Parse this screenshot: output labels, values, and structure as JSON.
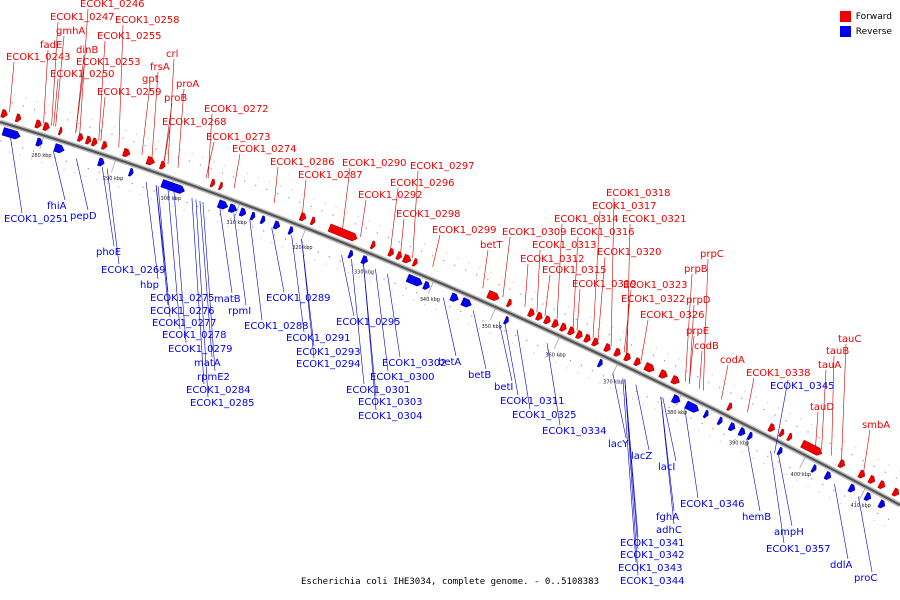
{
  "caption": "Escherichia coli IHE3034, complete genome. - 0..5108383",
  "legend": [
    {
      "label": "Forward",
      "color": "#ee0000"
    },
    {
      "label": "Reverse",
      "color": "#0000ee"
    }
  ],
  "colors": {
    "forward": "#ee0000",
    "reverse": "#0000ee",
    "backbone": "#777777"
  },
  "ticks": [
    "280 kbp",
    "290 kbp",
    "300 kbp",
    "310 kbp",
    "320 kbp",
    "330 kbp",
    "340 kbp",
    "350 kbp",
    "360 kbp",
    "370 kbp",
    "380 kbp",
    "390 kbp",
    "400 kbp",
    "410 kbp"
  ],
  "forward_labels": [
    "ECOK1_0246",
    "ECOK1_0247",
    "ECOK1_0258",
    "gmhA",
    "ECOK1_0255",
    "fadE",
    "dinB",
    "crl",
    "ECOK1_0243",
    "ECOK1_0253",
    "frsA",
    "ECOK1_0250",
    "gpt",
    "proA",
    "ECOK1_0259",
    "proB",
    "ECOK1_0268",
    "ECOK1_0272",
    "ECOK1_0273",
    "ECOK1_0274",
    "ECOK1_0286",
    "ECOK1_0290",
    "ECOK1_0297",
    "ECOK1_0287",
    "ECOK1_0296",
    "ECOK1_0292",
    "ECOK1_0298",
    "ECOK1_0299",
    "betT",
    "ECOK1_0318",
    "ECOK1_0317",
    "ECOK1_0314",
    "ECOK1_0321",
    "ECOK1_0309",
    "ECOK1_0316",
    "ECOK1_0313",
    "ECOK1_0320",
    "prpC",
    "ECOK1_0312",
    "prpB",
    "ECOK1_0315",
    "ECOK1_0319",
    "ECOK1_0323",
    "prpD",
    "ECOK1_0322",
    "ECOK1_0326",
    "prpE",
    "codB",
    "codA",
    "tauC",
    "tauB",
    "ECOK1_0338",
    "tauA",
    "tauD",
    "smbA"
  ],
  "reverse_labels": [
    "fhiA",
    "ECOK1_0251",
    "pepD",
    "phoE",
    "ECOK1_0269",
    "hbp",
    "ECOK1_0275",
    "matB",
    "ECOK1_0276",
    "rpmI",
    "ECOK1_0277",
    "ECOK1_0278",
    "ECOK1_0279",
    "matA",
    "rpmE2",
    "ECOK1_0284",
    "ECOK1_0285",
    "ECOK1_0289",
    "ECOK1_0288",
    "ECOK1_0295",
    "ECOK1_0291",
    "ECOK1_0293",
    "ECOK1_0294",
    "ECOK1_0302",
    "ECOK1_0300",
    "ECOK1_0301",
    "ECOK1_0303",
    "ECOK1_0304",
    "betA",
    "betB",
    "betI",
    "ECOK1_0311",
    "ECOK1_0325",
    "ECOK1_0334",
    "lacY",
    "lacZ",
    "lacI",
    "ECOK1_0345",
    "ECOK1_0346",
    "fghA",
    "adhC",
    "ECOK1_0341",
    "ECOK1_0342",
    "ECOK1_0343",
    "ECOK1_0344",
    "hemB",
    "ampH",
    "ECOK1_0357",
    "ddlA",
    "proC"
  ]
}
